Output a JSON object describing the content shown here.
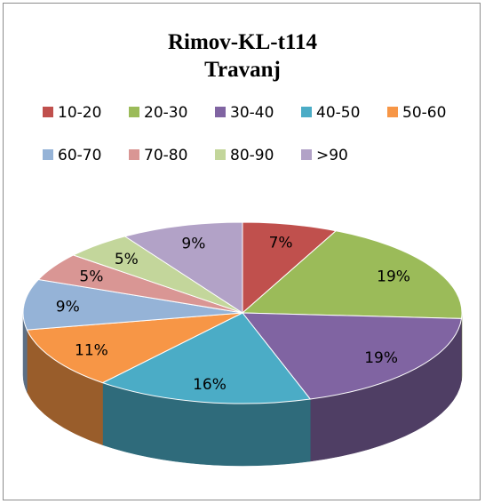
{
  "chart_data": {
    "type": "pie",
    "style": "3d",
    "title_line1": "Rimov-KL-t114",
    "title_line2": "Travanj",
    "legend_position": "top",
    "slices": [
      {
        "name": "10-20",
        "value": 7,
        "label": "7%",
        "color": "#c0504d"
      },
      {
        "name": "20-30",
        "value": 19,
        "label": "19%",
        "color": "#9bbb59"
      },
      {
        "name": "30-40",
        "value": 19,
        "label": "19%",
        "color": "#8064a2"
      },
      {
        "name": "40-50",
        "value": 16,
        "label": "16%",
        "color": "#4bacc6"
      },
      {
        "name": "50-60",
        "value": 11,
        "label": "11%",
        "color": "#f79646"
      },
      {
        "name": "60-70",
        "value": 9,
        "label": "9%",
        "color": "#95b3d7"
      },
      {
        "name": "70-80",
        "value": 5,
        "label": "5%",
        "color": "#d99694"
      },
      {
        "name": "80-90",
        "value": 5,
        "label": "5%",
        "color": "#c3d69b"
      },
      {
        "name": ">90",
        "value": 9,
        "label": "9%",
        "color": "#b2a2c7"
      }
    ]
  }
}
